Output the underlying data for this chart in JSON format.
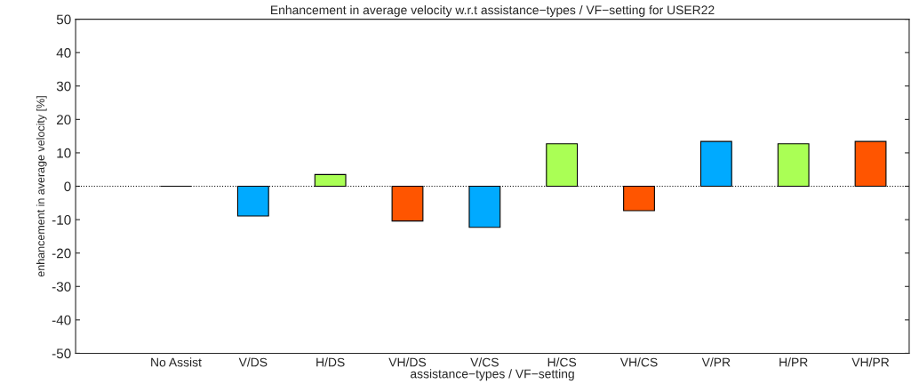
{
  "chart_data": {
    "type": "bar",
    "title": "Enhancement in average velocity w.r.t assistance−types / VF−setting for USER22",
    "xlabel": "assistance−types / VF−setting",
    "ylabel": "enhancement in average velocity [%]",
    "categories": [
      "No Assist",
      "V/DS",
      "H/DS",
      "VH/DS",
      "V/CS",
      "H/CS",
      "VH/CS",
      "V/PR",
      "H/PR",
      "VH/PR"
    ],
    "values": [
      0,
      -8.9,
      3.5,
      -10.4,
      -12.3,
      12.7,
      -7.3,
      13.4,
      12.7,
      13.4
    ],
    "colors": [
      "#000000",
      "#00aaff",
      "#aaff55",
      "#ff5500",
      "#00aaff",
      "#aaff55",
      "#ff5500",
      "#00aaff",
      "#aaff55",
      "#ff5500"
    ],
    "ylim": [
      -50,
      50
    ],
    "yticks": [
      -50,
      -40,
      -30,
      -20,
      -10,
      0,
      10,
      20,
      30,
      40,
      50
    ],
    "grid": false,
    "ref_lines": [
      {
        "axis": "y",
        "value": 0,
        "color": "#000000",
        "line_style": "dotted"
      }
    ]
  }
}
